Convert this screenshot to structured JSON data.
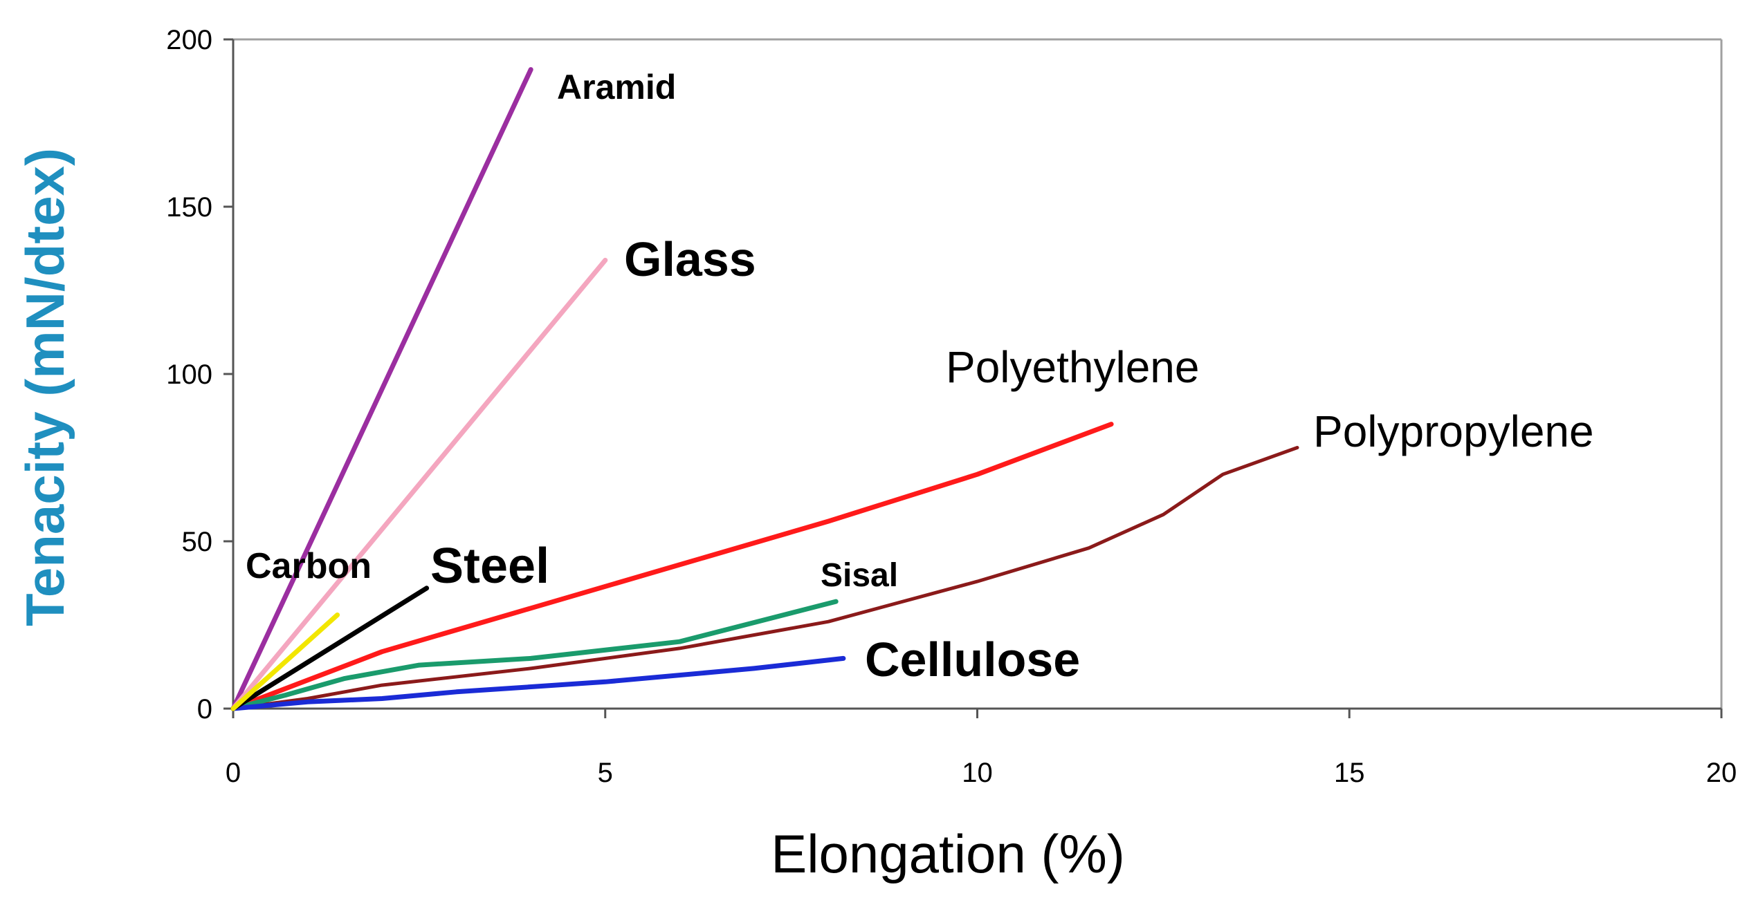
{
  "chart_data": {
    "type": "line",
    "title": "",
    "xlabel": "Elongation (%)",
    "ylabel": "Tenacity (mN/dtex)",
    "xlim": [
      0,
      20
    ],
    "ylim": [
      0,
      200
    ],
    "x_ticks": [
      0,
      5,
      10,
      15,
      20
    ],
    "y_ticks": [
      0,
      50,
      100,
      150,
      200
    ],
    "grid": false,
    "legend": "none (inline labels)",
    "colors": {
      "ylabel": "#1f8fbf"
    },
    "series": [
      {
        "name": "Aramid",
        "label": "Aramid",
        "color": "#9b2ea0",
        "points": [
          [
            0,
            0
          ],
          [
            4.0,
            191
          ]
        ]
      },
      {
        "name": "Glass",
        "label": "Glass",
        "color": "#f4a6bf",
        "points": [
          [
            0,
            0
          ],
          [
            5.0,
            134
          ]
        ]
      },
      {
        "name": "Polyethylene",
        "label": "Polyethylene",
        "color": "#ff1a1a",
        "points": [
          [
            0,
            0
          ],
          [
            2,
            17
          ],
          [
            4,
            30
          ],
          [
            6,
            43
          ],
          [
            8,
            56
          ],
          [
            10,
            70
          ],
          [
            11.8,
            85
          ]
        ]
      },
      {
        "name": "Polypropylene",
        "label": "Polypropylene",
        "color": "#8b1a1a",
        "points": [
          [
            0,
            0
          ],
          [
            1,
            3
          ],
          [
            2,
            7
          ],
          [
            4,
            12
          ],
          [
            6,
            18
          ],
          [
            8,
            26
          ],
          [
            10,
            38
          ],
          [
            11.5,
            48
          ],
          [
            12.5,
            58
          ],
          [
            13.3,
            70
          ],
          [
            14.3,
            78
          ]
        ]
      },
      {
        "name": "Sisal",
        "label": "Sisal",
        "color": "#1a9b6c",
        "points": [
          [
            0,
            0
          ],
          [
            0.7,
            4
          ],
          [
            1.5,
            9
          ],
          [
            2.5,
            13
          ],
          [
            4,
            15
          ],
          [
            6,
            20
          ],
          [
            8.1,
            32
          ]
        ]
      },
      {
        "name": "Cellulose",
        "label": "Cellulose",
        "color": "#1a2bd6",
        "points": [
          [
            0,
            0
          ],
          [
            1,
            2
          ],
          [
            2,
            3
          ],
          [
            3,
            5
          ],
          [
            5,
            8
          ],
          [
            7,
            12
          ],
          [
            8.2,
            15
          ]
        ]
      },
      {
        "name": "Steel",
        "label": "Steel",
        "color": "#000000",
        "points": [
          [
            0,
            0
          ],
          [
            2.6,
            36
          ]
        ]
      },
      {
        "name": "Carbon",
        "label": "Carbon",
        "color": "#f2e600",
        "points": [
          [
            0,
            0
          ],
          [
            1.4,
            28
          ]
        ]
      }
    ]
  }
}
